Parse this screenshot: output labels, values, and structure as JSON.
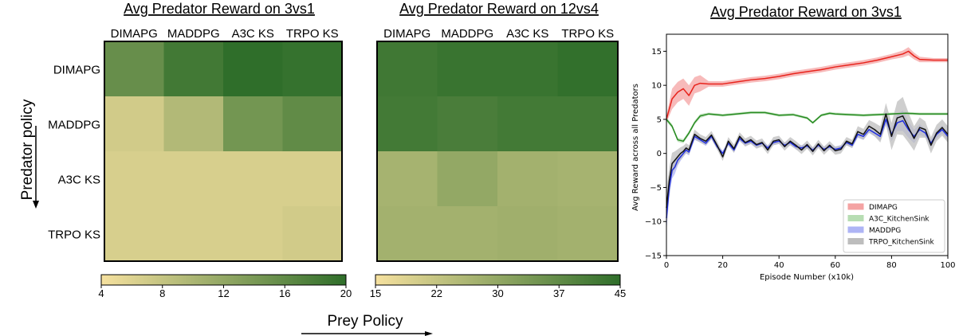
{
  "labels": {
    "row_axis_label": "Predator policy",
    "col_axis_label": "Prey Policy"
  },
  "chart_data": [
    {
      "type": "heatmap",
      "title": "Avg Predator Reward on 3vs1",
      "columns": [
        "DIMAPG",
        "MADDPG",
        "A3C KS",
        "TRPO KS"
      ],
      "rows": [
        "DIMAPG",
        "MADDPG",
        "A3C KS",
        "TRPO KS"
      ],
      "values": [
        [
          15.5,
          18.5,
          20.0,
          19.5
        ],
        [
          7.0,
          9.5,
          14.5,
          16.0
        ],
        [
          6.5,
          6.5,
          6.5,
          6.5
        ],
        [
          6.5,
          6.5,
          6.5,
          7.0
        ]
      ],
      "colorbar": {
        "range": [
          4,
          20
        ],
        "ticks": [
          "4",
          "8",
          "12",
          "16",
          "20"
        ],
        "colors": [
          "#f6e19f",
          "#2f6e2a"
        ]
      }
    },
    {
      "type": "heatmap",
      "title": "Avg Predator Reward on 12vs4",
      "columns": [
        "DIMAPG",
        "MADDPG",
        "A3C KS",
        "TRPO KS"
      ],
      "rows": [
        "DIMAPG",
        "MADDPG",
        "A3C KS",
        "TRPO KS"
      ],
      "values": [
        [
          42.5,
          43.5,
          43.5,
          44.5
        ],
        [
          42.0,
          41.0,
          42.0,
          42.0
        ],
        [
          27.0,
          30.0,
          27.5,
          27.0
        ],
        [
          27.5,
          27.5,
          28.0,
          27.5
        ]
      ],
      "colorbar": {
        "range": [
          15,
          45
        ],
        "ticks": [
          "15",
          "22",
          "30",
          "37",
          "45"
        ],
        "colors": [
          "#f6e19f",
          "#2f6e2a"
        ]
      }
    },
    {
      "type": "line",
      "title": "Avg Predator Reward on 3vs1",
      "xlabel": "Episode Number (x10k)",
      "ylabel": "Avg Reward across all Predators",
      "xlim": [
        0,
        100
      ],
      "ylim": [
        -15,
        17.5
      ],
      "xticks": [
        "0",
        "20",
        "40",
        "60",
        "80",
        "100"
      ],
      "yticks": [
        "−15",
        "−10",
        "−5",
        "0",
        "5",
        "10",
        "15"
      ],
      "legend": "lower-right",
      "series": [
        {
          "name": "DIMAPG",
          "color": "#e8231c",
          "band_color": "#f4a3a3",
          "x": [
            0,
            2,
            4,
            6,
            8,
            10,
            12,
            15,
            20,
            25,
            30,
            35,
            40,
            45,
            50,
            55,
            60,
            65,
            70,
            75,
            80,
            84,
            86,
            88,
            90,
            95,
            100
          ],
          "y": [
            5.0,
            8.0,
            9.0,
            9.5,
            8.5,
            10.0,
            10.3,
            10.2,
            10.2,
            10.5,
            10.8,
            11.0,
            11.3,
            11.7,
            12.0,
            12.3,
            12.7,
            13.0,
            13.3,
            13.7,
            14.2,
            14.6,
            15.0,
            14.3,
            13.8,
            13.7,
            13.7
          ],
          "spread": [
            0.5,
            1.5,
            1.5,
            1.5,
            1.5,
            1.2,
            1.2,
            0.4,
            0.4,
            0.4,
            0.4,
            0.4,
            0.4,
            0.4,
            0.4,
            0.4,
            0.4,
            0.4,
            0.4,
            0.4,
            0.4,
            0.5,
            0.6,
            0.5,
            0.4,
            0.3,
            0.3
          ]
        },
        {
          "name": "A3C_KitchenSink",
          "color": "#268a20",
          "band_color": "#b7ddb3",
          "x": [
            0,
            2,
            4,
            6,
            8,
            10,
            12,
            15,
            20,
            25,
            30,
            35,
            40,
            45,
            50,
            52,
            55,
            58,
            60,
            65,
            70,
            75,
            80,
            85,
            90,
            95,
            100
          ],
          "y": [
            5.0,
            4.0,
            2.0,
            1.8,
            3.0,
            4.5,
            5.5,
            5.8,
            5.6,
            5.8,
            6.0,
            6.0,
            5.6,
            5.7,
            5.2,
            4.5,
            5.6,
            5.9,
            5.8,
            5.7,
            5.6,
            5.7,
            5.8,
            5.9,
            5.8,
            5.8,
            5.8
          ],
          "spread": [
            0.3,
            0.3,
            0.3,
            0.3,
            0.3,
            0.3,
            0.3,
            0.2,
            0.2,
            0.2,
            0.2,
            0.2,
            0.2,
            0.2,
            0.2,
            0.2,
            0.2,
            0.2,
            0.2,
            0.2,
            0.2,
            0.2,
            0.2,
            0.2,
            0.2,
            0.2,
            0.2
          ]
        },
        {
          "name": "MADDPG",
          "color": "#1f2ee0",
          "band_color": "#aeb4f5",
          "x": [
            0,
            1,
            2,
            3,
            4,
            5,
            6,
            7,
            8,
            10,
            12,
            14,
            16,
            18,
            20,
            22,
            24,
            26,
            28,
            30,
            32,
            34,
            36,
            38,
            40,
            42,
            44,
            46,
            48,
            50,
            52,
            54,
            56,
            58,
            60,
            62,
            64,
            66,
            68,
            70,
            72,
            74,
            76,
            78,
            80,
            82,
            84,
            86,
            88,
            90,
            92,
            94,
            96,
            98,
            100
          ],
          "y": [
            -9.5,
            -5.0,
            -2.5,
            -2.0,
            -1.0,
            -0.5,
            0.0,
            0.5,
            0.2,
            2.5,
            2.0,
            1.5,
            2.5,
            1.0,
            0.0,
            1.5,
            0.5,
            2.2,
            1.5,
            1.8,
            1.2,
            1.5,
            0.8,
            1.6,
            1.8,
            1.2,
            1.6,
            1.0,
            0.8,
            1.1,
            0.5,
            1.2,
            0.6,
            1.0,
            0.6,
            0.8,
            1.6,
            1.2,
            2.8,
            2.5,
            3.5,
            3.0,
            2.5,
            5.0,
            2.8,
            4.5,
            4.8,
            3.5,
            2.5,
            3.5,
            3.0,
            1.5,
            2.8,
            3.5,
            2.5
          ],
          "spread": [
            2.0,
            1.5,
            1.2,
            1.0,
            0.8,
            0.6,
            0.5,
            0.5,
            0.5,
            0.5,
            0.4,
            0.4,
            0.4,
            0.4,
            0.4,
            0.4,
            0.4,
            0.4,
            0.4,
            0.4,
            0.4,
            0.4,
            0.4,
            0.4,
            0.4,
            0.4,
            0.4,
            0.4,
            0.4,
            0.4,
            0.4,
            0.4,
            0.4,
            0.4,
            0.4,
            0.4,
            0.4,
            0.4,
            0.5,
            0.5,
            0.5,
            0.5,
            0.6,
            0.8,
            1.0,
            1.2,
            1.5,
            1.2,
            1.0,
            0.8,
            0.6,
            0.6,
            0.6,
            0.6,
            0.6
          ]
        },
        {
          "name": "TRPO_KitchenSink",
          "color": "#111111",
          "band_color": "#bdbdbd",
          "x": [
            0,
            1,
            2,
            3,
            4,
            5,
            6,
            7,
            8,
            10,
            12,
            14,
            16,
            18,
            20,
            22,
            24,
            26,
            28,
            30,
            32,
            34,
            36,
            38,
            40,
            42,
            44,
            46,
            48,
            50,
            52,
            54,
            56,
            58,
            60,
            62,
            64,
            66,
            68,
            70,
            72,
            74,
            76,
            78,
            80,
            82,
            84,
            86,
            88,
            90,
            92,
            94,
            96,
            98,
            100
          ],
          "y": [
            -8.0,
            -4.0,
            -1.5,
            -1.0,
            -0.5,
            0.0,
            0.3,
            0.8,
            0.5,
            2.8,
            2.2,
            1.8,
            2.7,
            1.2,
            -0.5,
            1.8,
            0.7,
            2.5,
            1.6,
            2.0,
            1.3,
            1.6,
            0.5,
            1.8,
            2.0,
            1.0,
            1.8,
            1.2,
            0.5,
            1.3,
            0.3,
            1.4,
            0.4,
            1.2,
            0.4,
            0.6,
            1.8,
            1.4,
            3.2,
            2.8,
            4.0,
            3.5,
            2.8,
            5.8,
            2.5,
            5.2,
            5.5,
            3.8,
            2.2,
            3.8,
            3.5,
            1.2,
            3.0,
            3.8,
            2.8
          ],
          "spread": [
            2.5,
            2.0,
            1.6,
            1.3,
            1.1,
            0.9,
            0.8,
            0.7,
            0.7,
            0.7,
            0.6,
            0.6,
            0.6,
            0.6,
            0.6,
            0.6,
            0.6,
            0.6,
            0.6,
            0.6,
            0.6,
            0.6,
            0.6,
            0.6,
            0.6,
            0.6,
            0.6,
            0.6,
            0.6,
            0.6,
            0.6,
            0.6,
            0.6,
            0.6,
            0.6,
            0.6,
            0.6,
            0.6,
            0.8,
            0.8,
            0.9,
            1.0,
            1.2,
            1.6,
            2.0,
            2.4,
            2.8,
            2.2,
            1.8,
            1.5,
            1.2,
            1.2,
            1.2,
            1.2,
            1.2
          ]
        }
      ]
    }
  ]
}
